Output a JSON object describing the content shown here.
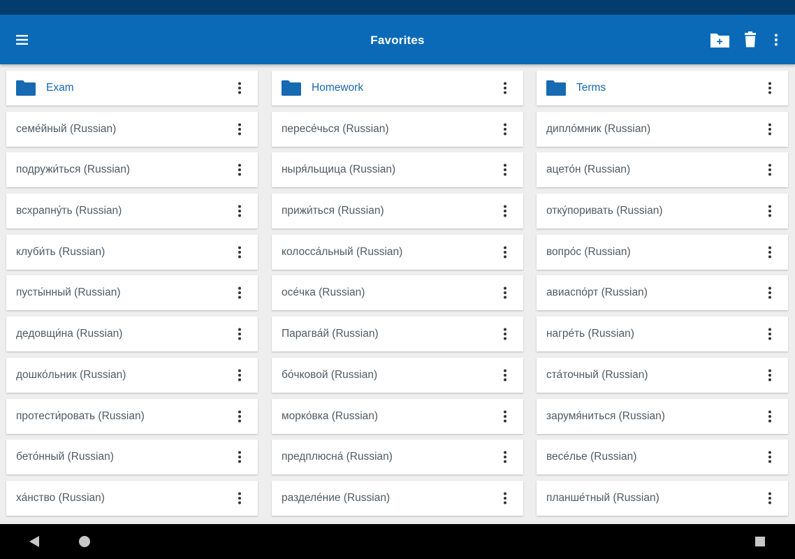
{
  "app_bar": {
    "title": "Favorites"
  },
  "icons": {
    "menu": "menu-icon",
    "add_folder": "create-folder-icon",
    "delete": "trash-icon",
    "more": "more-vert-icon",
    "folder": "folder-icon",
    "back": "back-triangle-icon",
    "home": "home-circle-icon",
    "recent": "recent-square-icon"
  },
  "colors": {
    "status_bar": "#033d6e",
    "app_bar": "#0a6ab8",
    "folder": "#1769b2",
    "item_text": "#4f5a63",
    "background": "#eeeeee"
  },
  "columns": [
    {
      "folder": "Exam",
      "items": [
        "семе́йный (Russian)",
        "подружи́ться (Russian)",
        "всхрапну́ть (Russian)",
        "клуби́ть (Russian)",
        "пусты́нный (Russian)",
        "дедовщи́на (Russian)",
        "дошко́льник (Russian)",
        "протести́ровать (Russian)",
        "бето́нный (Russian)",
        "ха́нство (Russian)"
      ]
    },
    {
      "folder": "Homework",
      "items": [
        "пересе́чься (Russian)",
        "ныря́льщица (Russian)",
        "прижи́ться (Russian)",
        "колосса́льный (Russian)",
        "осе́чка (Russian)",
        "Парагва́й (Russian)",
        "бо́чковой (Russian)",
        "морко́вка (Russian)",
        "предплюсна́ (Russian)",
        "разделе́ние (Russian)"
      ]
    },
    {
      "folder": "Terms",
      "items": [
        "дипло́мник (Russian)",
        "ацето́н (Russian)",
        "отку́поривать (Russian)",
        "вопро́с (Russian)",
        "авиаспо́рт (Russian)",
        "нагре́ть (Russian)",
        "ста́точный (Russian)",
        "зарумя́ниться (Russian)",
        "весе́лье (Russian)",
        "планше́тный (Russian)"
      ]
    }
  ]
}
